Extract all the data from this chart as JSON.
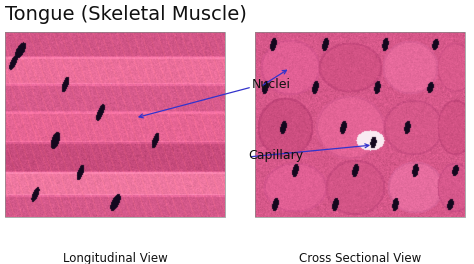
{
  "title": "Tongue (Skeletal Muscle)",
  "title_fontsize": 14,
  "title_color": "#111111",
  "background_color": "#ffffff",
  "label_nuclei": "Nuclei",
  "label_capillary": "Capillary",
  "label_left": "Longitudinal View",
  "label_right": "Cross Sectional View",
  "label_fontsize": 8.5,
  "annotation_fontsize": 9,
  "arrow_color": "#3333cc",
  "nucleus_dark": "#1a0830",
  "he_pink_r": 220,
  "he_pink_g": 80,
  "he_pink_b": 130,
  "he_light_r": 240,
  "he_light_g": 140,
  "he_light_b": 175
}
